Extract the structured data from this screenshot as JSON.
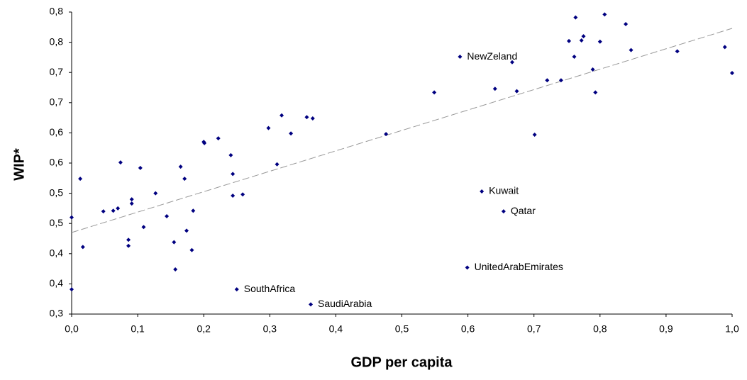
{
  "chart_data": {
    "type": "scatter",
    "xlabel": "GDP per capita",
    "ylabel": "WIP*",
    "color": "#000080",
    "xlim": [
      0,
      1
    ],
    "ylim": [
      0.3,
      0.8
    ],
    "xticks": [
      {
        "value": 0,
        "label": "0,0"
      },
      {
        "value": 0.1,
        "label": "0,1"
      },
      {
        "value": 0.2,
        "label": "0,2"
      },
      {
        "value": 0.3,
        "label": "0,3"
      },
      {
        "value": 0.4,
        "label": "0,4"
      },
      {
        "value": 0.5,
        "label": "0,5"
      },
      {
        "value": 0.6,
        "label": "0,6"
      },
      {
        "value": 0.7,
        "label": "0,7"
      },
      {
        "value": 0.8,
        "label": "0,8"
      },
      {
        "value": 0.9,
        "label": "0,9"
      },
      {
        "value": 1,
        "label": "1,0"
      }
    ],
    "yticks": [
      {
        "value": 0.3,
        "label": "0,3"
      },
      {
        "value": 0.35,
        "label": "0,4"
      },
      {
        "value": 0.4,
        "label": "0,4"
      },
      {
        "value": 0.45,
        "label": "0,5"
      },
      {
        "value": 0.5,
        "label": "0,5"
      },
      {
        "value": 0.55,
        "label": "0,6"
      },
      {
        "value": 0.6,
        "label": "0,6"
      },
      {
        "value": 0.65,
        "label": "0,7"
      },
      {
        "value": 0.7,
        "label": "0,7"
      },
      {
        "value": 0.75,
        "label": "0,8"
      },
      {
        "value": 0.8,
        "label": "0,8"
      }
    ],
    "x": [
      0,
      0,
      0.013,
      0.017,
      0.048,
      0.063,
      0.07,
      0.074,
      0.086,
      0.086,
      0.091,
      0.091,
      0.104,
      0.109,
      0.127,
      0.144,
      0.155,
      0.157,
      0.165,
      0.171,
      0.174,
      0.184,
      0.182,
      0.2,
      0.201,
      0.222,
      0.241,
      0.244,
      0.244,
      0.25,
      0.259,
      0.298,
      0.311,
      0.318,
      0.332,
      0.356,
      0.365,
      0.362,
      0.476,
      0.549,
      0.588,
      0.599,
      0.621,
      0.654,
      0.641,
      0.667,
      0.674,
      0.701,
      0.72,
      0.741,
      0.753,
      0.761,
      0.763,
      0.772,
      0.775,
      0.8,
      0.789,
      0.793,
      0.807,
      0.839,
      0.847,
      0.917,
      0.989,
      1.0
    ],
    "y": [
      0.341,
      0.46,
      0.524,
      0.411,
      0.47,
      0.471,
      0.475,
      0.551,
      0.423,
      0.413,
      0.49,
      0.483,
      0.542,
      0.444,
      0.5,
      0.462,
      0.419,
      0.374,
      0.544,
      0.524,
      0.438,
      0.471,
      0.406,
      0.585,
      0.583,
      0.591,
      0.563,
      0.532,
      0.496,
      0.341,
      0.498,
      0.608,
      0.548,
      0.629,
      0.599,
      0.626,
      0.624,
      0.316,
      0.598,
      0.667,
      0.726,
      0.377,
      0.503,
      0.47,
      0.673,
      0.717,
      0.669,
      0.597,
      0.687,
      0.687,
      0.752,
      0.726,
      0.791,
      0.753,
      0.76,
      0.751,
      0.705,
      0.667,
      0.796,
      0.78,
      0.737,
      0.735,
      0.742,
      0.699
    ],
    "labels": [
      null,
      null,
      null,
      null,
      null,
      null,
      null,
      null,
      null,
      null,
      null,
      null,
      null,
      null,
      null,
      null,
      null,
      null,
      null,
      null,
      null,
      null,
      null,
      null,
      null,
      null,
      null,
      null,
      null,
      "SouthAfrica",
      null,
      null,
      null,
      null,
      null,
      null,
      null,
      "SaudiArabia",
      null,
      null,
      "NewZeland",
      "UnitedArabEmirates",
      "Kuwait",
      "Qatar",
      null,
      null,
      null,
      null,
      null,
      null,
      null,
      null,
      null,
      null,
      null,
      null,
      null,
      null,
      null,
      null,
      null,
      null,
      null,
      null
    ],
    "trendline": {
      "x": [
        0,
        1
      ],
      "y": [
        0.435,
        0.773
      ],
      "color": "#999999"
    }
  }
}
